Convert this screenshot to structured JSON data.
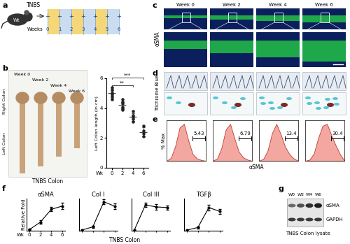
{
  "figure": {
    "letters": [
      "a",
      "b",
      "c",
      "d",
      "e",
      "f",
      "g"
    ],
    "a": {
      "strain": "Wt",
      "treatment": "TNBS",
      "timeline_label": "Weeks",
      "weeks": [
        0,
        1,
        2,
        3,
        4,
        5,
        6
      ],
      "dose_mark": "+"
    },
    "b": {
      "week_labels": [
        "Week 0",
        "Week 2",
        "Week 4",
        "Week 6"
      ],
      "regions": [
        "Right Colon",
        "Left Colon"
      ],
      "caption": "TNBS Colon"
    },
    "c": {
      "stain": "αSMA",
      "week_labels": [
        "Week 0",
        "Week 2",
        "Week 4",
        "Week 6"
      ]
    },
    "d": {
      "stain": "Trichrome Blue"
    },
    "e": {
      "x_label": "αSMA"
    },
    "f": {
      "caption": "TNBS Colon"
    },
    "g": {
      "lanes": [
        "W0",
        "W2",
        "W4",
        "W6"
      ],
      "bands": [
        "αSMA",
        "GAPDH"
      ],
      "caption": "TNBS Colon lysate"
    }
  },
  "chart_data": [
    {
      "type": "scatter",
      "y_label": "Left Colon length (in cm)",
      "x_label": "Wk",
      "x": [
        0,
        0,
        0,
        0,
        0,
        0,
        2,
        2,
        2,
        2,
        2,
        2,
        4,
        4,
        4,
        4,
        4,
        6,
        6,
        6,
        6
      ],
      "values": [
        5.4,
        5.2,
        5.0,
        4.9,
        4.8,
        4.6,
        4.6,
        4.4,
        4.3,
        4.1,
        4.0,
        3.9,
        3.8,
        3.5,
        3.4,
        3.3,
        3.1,
        2.8,
        2.5,
        2.3,
        2.1
      ],
      "means": [
        5.0,
        4.2,
        3.4,
        2.4
      ],
      "errors": [
        0.3,
        0.25,
        0.25,
        0.3
      ],
      "xlim": [
        -1,
        7
      ],
      "xticks": [
        0,
        2,
        4,
        6
      ],
      "ylim": [
        0,
        6
      ],
      "yticks": [
        0,
        2,
        4,
        6
      ],
      "color": "#222222",
      "marker": "o",
      "annotations": [
        {
          "text": "**",
          "x1": 0,
          "x2": 4
        },
        {
          "text": "***",
          "x1": 0,
          "x2": 6
        }
      ]
    },
    {
      "type": "area",
      "y_label": "% Max",
      "x": [
        0,
        0.5,
        1,
        1.5,
        2,
        2.5,
        3,
        3.5,
        4,
        4.5
      ],
      "values": [
        0,
        8,
        40,
        90,
        100,
        55,
        18,
        6,
        2,
        0
      ],
      "xlim": [
        0,
        4.5
      ],
      "ylim": [
        0,
        110
      ],
      "gate": [
        3.0,
        4.4
      ],
      "gate_percent": 5.43,
      "color": "#f2a7a0",
      "tick_labels": false
    },
    {
      "type": "area",
      "x": [
        0,
        0.5,
        1,
        1.5,
        2,
        2.5,
        3,
        3.5,
        4,
        4.5
      ],
      "values": [
        0,
        6,
        35,
        85,
        100,
        60,
        24,
        9,
        3,
        0
      ],
      "xlim": [
        0,
        4.5
      ],
      "ylim": [
        0,
        110
      ],
      "gate": [
        3.0,
        4.4
      ],
      "gate_percent": 6.79,
      "color": "#f2a7a0",
      "tick_labels": false
    },
    {
      "type": "area",
      "x": [
        0,
        0.5,
        1,
        1.5,
        2,
        2.5,
        3,
        3.5,
        4,
        4.5
      ],
      "values": [
        0,
        5,
        28,
        75,
        100,
        72,
        38,
        18,
        6,
        0
      ],
      "xlim": [
        0,
        4.5
      ],
      "ylim": [
        0,
        110
      ],
      "gate": [
        3.0,
        4.4
      ],
      "gate_percent": 13.4,
      "color": "#f2a7a0",
      "tick_labels": false
    },
    {
      "type": "area",
      "x": [
        0,
        0.5,
        1,
        1.5,
        2,
        2.5,
        3,
        3.5,
        4,
        4.5
      ],
      "values": [
        0,
        3,
        20,
        62,
        95,
        100,
        70,
        42,
        18,
        0
      ],
      "xlim": [
        0,
        4.5
      ],
      "ylim": [
        0,
        110
      ],
      "gate": [
        3.0,
        4.4
      ],
      "gate_percent": 30.4,
      "color": "#f2a7a0",
      "tick_labels": false
    },
    {
      "type": "line",
      "title": "αSMA",
      "y_label": "Relative Fold",
      "x_label": "Wk",
      "x": [
        0,
        2,
        4,
        6
      ],
      "values": [
        1,
        8,
        20,
        23
      ],
      "errors": [
        0.5,
        1.5,
        2,
        3
      ],
      "xlim": [
        -0.5,
        6.5
      ],
      "xticks": [
        0,
        2,
        4,
        6
      ],
      "ylim": [
        0,
        30
      ],
      "color": "#000000",
      "marker": "o",
      "tick_labels": "x"
    },
    {
      "type": "line",
      "title": "Col I",
      "x": [
        0,
        2,
        4,
        6
      ],
      "values": [
        1,
        6,
        45,
        38
      ],
      "errors": [
        0.5,
        1.5,
        4,
        4
      ],
      "xlim": [
        -0.5,
        6.5
      ],
      "xticks": [
        0,
        2,
        4,
        6
      ],
      "ylim": [
        0,
        50
      ],
      "color": "#000000",
      "marker": "o",
      "tick_labels": false
    },
    {
      "type": "line",
      "title": "Col III",
      "x": [
        0,
        2,
        4,
        6
      ],
      "values": [
        1,
        40,
        37,
        36
      ],
      "errors": [
        0.5,
        3,
        4,
        3
      ],
      "xlim": [
        -0.5,
        6.5
      ],
      "xticks": [
        0,
        2,
        4,
        6
      ],
      "ylim": [
        0,
        50
      ],
      "color": "#000000",
      "marker": "o",
      "tick_labels": false
    },
    {
      "type": "line",
      "title": "TGFβ",
      "x": [
        0,
        2,
        4,
        6
      ],
      "values": [
        1,
        5,
        36,
        30
      ],
      "errors": [
        0.5,
        1.5,
        4,
        4
      ],
      "xlim": [
        -0.5,
        6.5
      ],
      "xticks": [
        0,
        2,
        4,
        6
      ],
      "ylim": [
        0,
        50
      ],
      "color": "#000000",
      "marker": "o",
      "tick_labels": false
    }
  ]
}
